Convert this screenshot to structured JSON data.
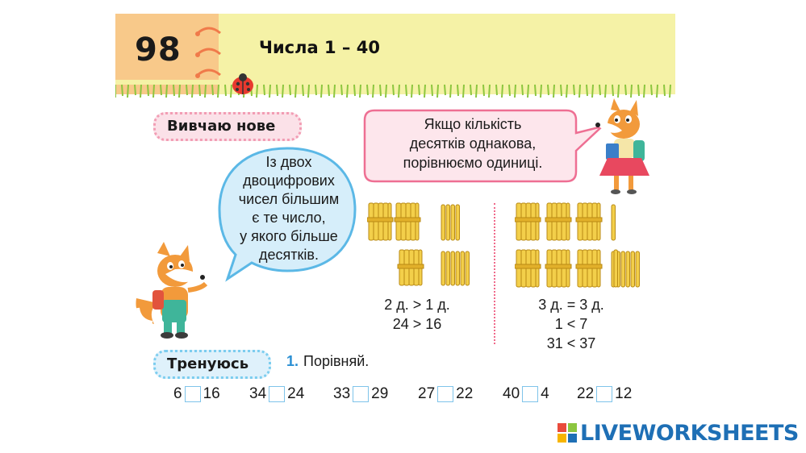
{
  "header": {
    "page_number": "98",
    "title": "Числа 1 – 40"
  },
  "sections": {
    "learn_label": "Вивчаю нове",
    "train_label": "Тренуюсь"
  },
  "bubbles": {
    "left_lines": [
      "Із двох",
      "двоцифрових",
      "чисел більшим",
      "є те число,",
      "у якого більше",
      "десятків."
    ],
    "top_lines": [
      "Якщо кількість",
      "десятків однакова,",
      "порівнюємо одиниці."
    ]
  },
  "comparisons": {
    "left": [
      "2 д. > 1 д.",
      "24 > 16"
    ],
    "right": [
      "3 д. = 3 д.",
      "1 < 7",
      "31 < 37"
    ]
  },
  "exercise": {
    "number": "1.",
    "instruction": "Порівняй.",
    "pairs": [
      {
        "a": "6",
        "b": "16"
      },
      {
        "a": "34",
        "b": "24"
      },
      {
        "a": "33",
        "b": "29"
      },
      {
        "a": "27",
        "b": "22"
      },
      {
        "a": "40",
        "b": "4"
      },
      {
        "a": "22",
        "b": "12"
      }
    ]
  },
  "brand": {
    "name": "LIVEWORKSHEETS"
  },
  "colors": {
    "header_yellow": "#f5f2a6",
    "page_num_orange": "#f8c98a",
    "stick_yellow": "#f3cf4a",
    "brand_blue": "#1e6fb5",
    "answer_box_border": "#7fc4ea"
  }
}
